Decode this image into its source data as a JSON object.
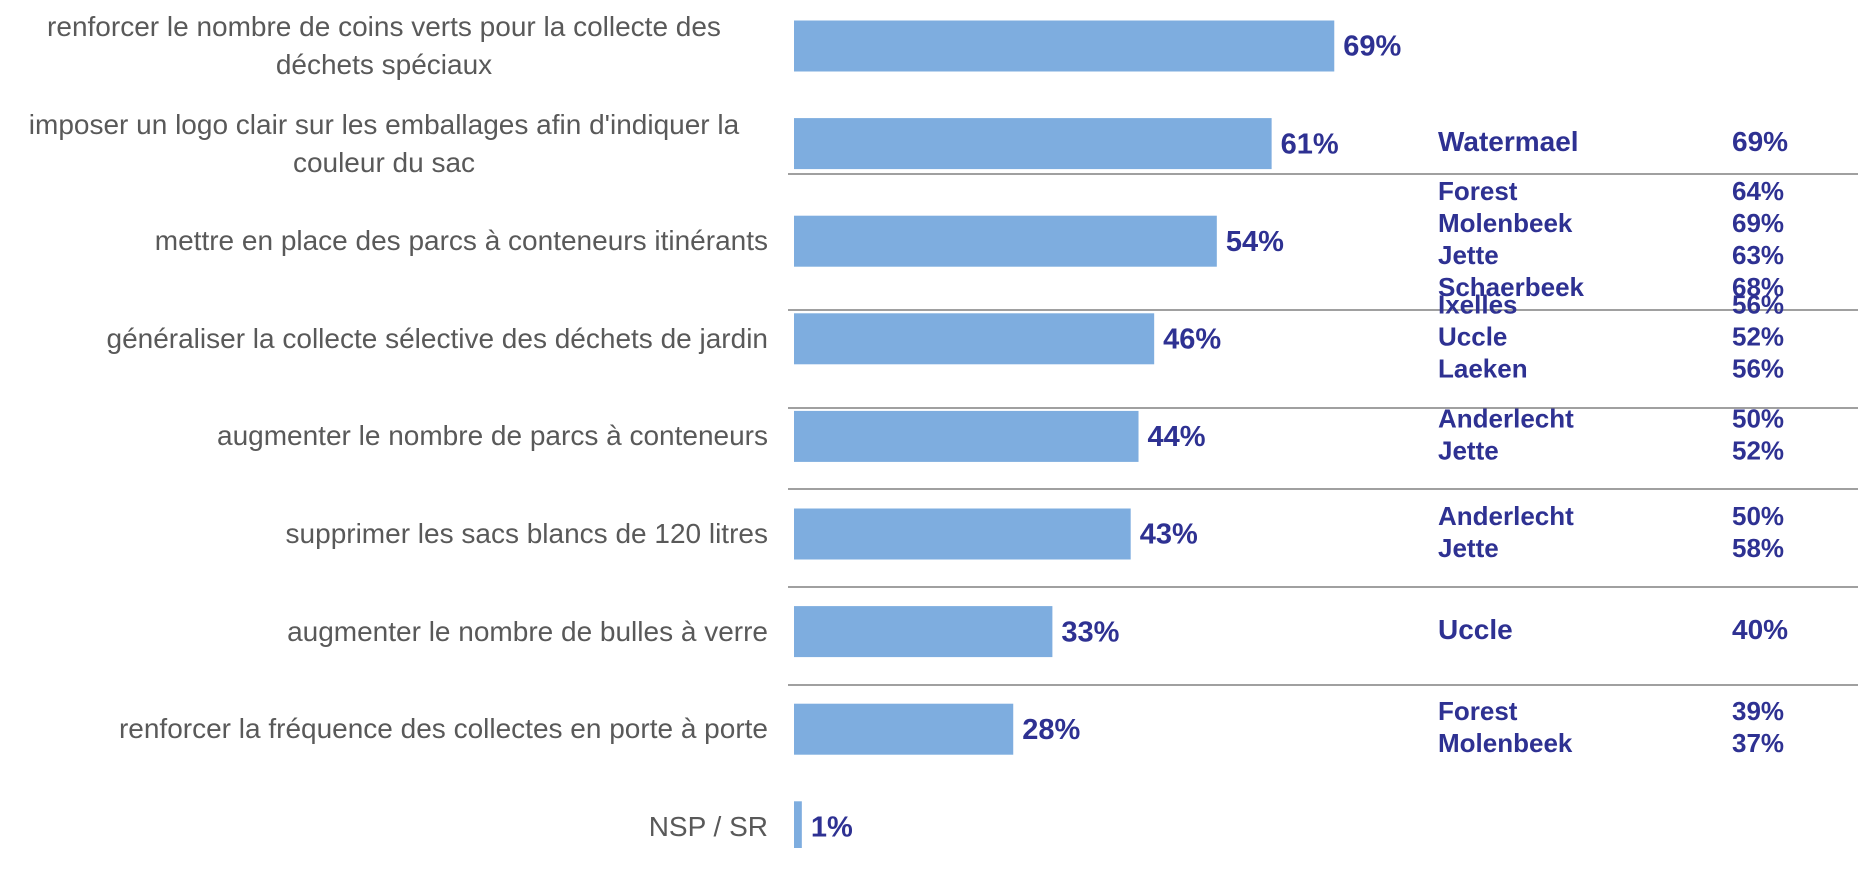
{
  "chart_data": {
    "type": "bar",
    "orientation": "horizontal",
    "categories": [
      "renforcer le nombre de coins verts pour la collecte des déchets spéciaux",
      "imposer un logo clair sur les emballages afin d'indiquer la couleur du sac",
      "mettre en place des parcs à conteneurs itinérants",
      "généraliser la collecte sélective des déchets de jardin",
      "augmenter le nombre de parcs à conteneurs",
      "supprimer les sacs blancs de 120 litres",
      "augmenter le nombre de bulles à verre",
      "renforcer la fréquence des collectes en porte à porte",
      "NSP / SR"
    ],
    "values": [
      69,
      61,
      54,
      46,
      44,
      43,
      33,
      28,
      1
    ],
    "value_labels": [
      "69%",
      "61%",
      "54%",
      "46%",
      "44%",
      "43%",
      "33%",
      "28%",
      "1%"
    ],
    "color": "#7eaddf",
    "annotations": [
      [
        {
          "name": "Watermael",
          "value": "69%"
        }
      ],
      [
        {
          "name": "Forest",
          "value": "64%"
        },
        {
          "name": "Molenbeek",
          "value": "69%"
        },
        {
          "name": "Jette",
          "value": "63%"
        },
        {
          "name": "Schaerbeek",
          "value": "68%"
        }
      ],
      [
        {
          "name": "Ixelles",
          "value": "56%"
        },
        {
          "name": "Uccle",
          "value": "52%"
        },
        {
          "name": "Laeken",
          "value": "56%"
        }
      ],
      [
        {
          "name": "Anderlecht",
          "value": "50%"
        },
        {
          "name": "Jette",
          "value": "52%"
        }
      ],
      [
        {
          "name": "Anderlecht",
          "value": "50%"
        },
        {
          "name": "Jette",
          "value": "58%"
        }
      ],
      [
        {
          "name": "Uccle",
          "value": "40%"
        }
      ],
      [
        {
          "name": "Forest",
          "value": "39%"
        },
        {
          "name": "Molenbeek",
          "value": "37%"
        }
      ]
    ]
  }
}
